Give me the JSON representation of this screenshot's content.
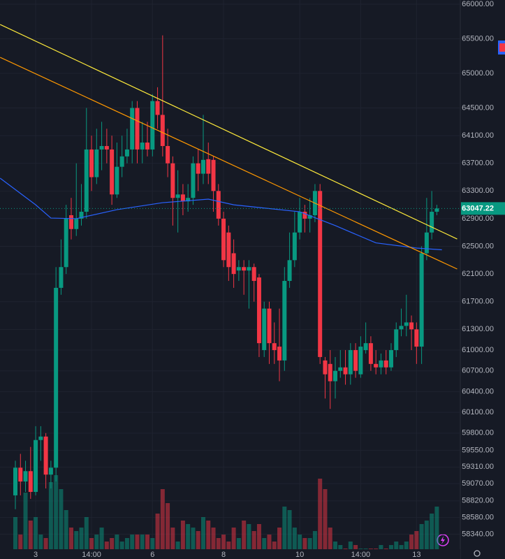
{
  "chart_data": {
    "type": "candlestick",
    "up_color": "#089981",
    "down_color": "#f23645",
    "categories": [
      null,
      null,
      null,
      null,
      "3",
      null,
      null,
      null,
      null,
      null,
      null,
      null,
      null,
      null,
      null,
      "14:00",
      null,
      null,
      null,
      null,
      null,
      null,
      null,
      null,
      null,
      null,
      null,
      "6",
      null,
      null,
      null,
      null,
      null,
      null,
      null,
      null,
      null,
      null,
      null,
      null,
      null,
      "8",
      null,
      null,
      null,
      null,
      null,
      null,
      null,
      null,
      null,
      null,
      null,
      null,
      null,
      null,
      "10",
      null,
      null,
      null,
      null,
      null,
      null,
      null,
      null,
      null,
      null,
      null,
      "14:00",
      null,
      null,
      null,
      null,
      null,
      null,
      null,
      null,
      null,
      null,
      "13",
      null,
      null,
      null,
      null
    ],
    "open": [
      58900,
      59300,
      59100,
      59250,
      58950,
      59700,
      59750,
      59200,
      59300,
      61900,
      62200,
      62950,
      62750,
      62900,
      63000,
      63900,
      63500,
      63900,
      63950,
      63900,
      63250,
      63650,
      63800,
      63900,
      64500,
      63900,
      64000,
      63900,
      64600,
      64400,
      63950,
      63700,
      63200,
      63250,
      63150,
      63200,
      63700,
      63550,
      63760,
      63750,
      63300,
      62900,
      62700,
      62400,
      62150,
      62200,
      62150,
      62200,
      62050,
      61000,
      61600,
      61100,
      61050,
      60850,
      62000,
      62300,
      62700,
      63000,
      62900,
      62950,
      63300,
      60850,
      60800,
      60550,
      60700,
      60750,
      60650,
      61000,
      60650,
      61000,
      61100,
      60800,
      60750,
      60850,
      60750,
      61000,
      61300,
      61350,
      61400,
      61300,
      61050,
      62400,
      62700,
      63000
    ],
    "high": [
      59400,
      59500,
      59400,
      59600,
      59900,
      59900,
      59800,
      59400,
      62200,
      62600,
      63100,
      63200,
      63700,
      63400,
      64500,
      64100,
      64200,
      64300,
      64200,
      64100,
      64000,
      64100,
      64200,
      64600,
      64600,
      64300,
      64300,
      64700,
      64800,
      65550,
      64200,
      63800,
      63600,
      63400,
      63400,
      63800,
      63900,
      64400,
      64000,
      63800,
      63400,
      63000,
      62800,
      62600,
      62300,
      62300,
      62300,
      62250,
      62100,
      61700,
      61700,
      61400,
      61600,
      62200,
      62700,
      63000,
      63200,
      63100,
      63200,
      63400,
      63400,
      60900,
      61000,
      60900,
      61000,
      61000,
      61100,
      61100,
      61200,
      61400,
      61200,
      61000,
      60950,
      61000,
      61100,
      61400,
      61600,
      61800,
      61500,
      61400,
      62500,
      63200,
      63300,
      63100
    ],
    "low": [
      58700,
      58900,
      58950,
      58850,
      58900,
      59400,
      59000,
      59000,
      59100,
      61800,
      62100,
      62600,
      62650,
      62800,
      62900,
      63300,
      63400,
      63600,
      63700,
      63100,
      63200,
      63500,
      63700,
      63700,
      63700,
      63700,
      63800,
      63800,
      64200,
      63800,
      63500,
      62800,
      62700,
      62950,
      63000,
      63100,
      63300,
      63400,
      63400,
      63000,
      62800,
      62200,
      62000,
      61900,
      62000,
      61800,
      61600,
      61700,
      60900,
      60900,
      60800,
      60800,
      60550,
      60700,
      61900,
      62200,
      62600,
      62700,
      62700,
      62850,
      60800,
      60300,
      60150,
      60300,
      60600,
      60500,
      60500,
      60600,
      60600,
      60950,
      60700,
      60650,
      60650,
      60650,
      60700,
      60900,
      61200,
      61200,
      61000,
      60800,
      60800,
      62300,
      62600,
      62950
    ],
    "close": [
      59300,
      59100,
      59250,
      58950,
      59700,
      59750,
      59200,
      59300,
      61900,
      62200,
      62900,
      62750,
      62900,
      63000,
      63900,
      63500,
      63900,
      63950,
      63900,
      63250,
      63650,
      63800,
      63900,
      64500,
      63900,
      64000,
      63900,
      64600,
      64400,
      63950,
      63700,
      63200,
      63250,
      63150,
      63200,
      63700,
      63550,
      63750,
      63550,
      63300,
      62900,
      62300,
      62200,
      62100,
      62200,
      62150,
      62200,
      62000,
      61100,
      61600,
      61100,
      61000,
      60850,
      62000,
      62300,
      62700,
      63000,
      62900,
      62950,
      63300,
      60900,
      60650,
      60550,
      60700,
      60750,
      60650,
      61000,
      60700,
      61050,
      61100,
      60800,
      60750,
      60850,
      60750,
      61000,
      61300,
      61350,
      61400,
      61300,
      61050,
      62400,
      62700,
      63000,
      63047.22
    ],
    "volume": [
      60,
      35,
      95,
      55,
      60,
      35,
      30,
      110,
      120,
      100,
      70,
      45,
      40,
      45,
      60,
      30,
      35,
      45,
      25,
      30,
      35,
      25,
      30,
      35,
      35,
      35,
      35,
      30,
      65,
      100,
      80,
      45,
      25,
      55,
      50,
      45,
      40,
      60,
      55,
      45,
      30,
      35,
      25,
      45,
      30,
      55,
      50,
      40,
      50,
      30,
      35,
      25,
      45,
      75,
      70,
      45,
      35,
      30,
      30,
      40,
      115,
      100,
      45,
      25,
      20,
      15,
      25,
      20,
      15,
      15,
      15,
      15,
      20,
      15,
      20,
      25,
      20,
      25,
      35,
      40,
      50,
      55,
      65,
      75
    ],
    "moving_average": {
      "color": "#2962ff",
      "x": [
        -3,
        4,
        7,
        12,
        20,
        29,
        38,
        43,
        56,
        63,
        71,
        79,
        84
      ],
      "values": [
        63485,
        63100,
        62909,
        62900,
        63030,
        63131,
        63182,
        63100,
        63000,
        62800,
        62550,
        62475,
        62450
      ]
    },
    "trendlines": [
      {
        "color": "#ffeb3b",
        "points": [
          [
            -3,
            65707
          ],
          [
            87,
            62606
          ]
        ]
      },
      {
        "color": "#ff9800",
        "points": [
          [
            -3,
            65232
          ],
          [
            87,
            62172
          ]
        ]
      }
    ],
    "last_price": 63047.22,
    "ylim": [
      57980,
      66061
    ],
    "yticks": [
      {
        "value": 66000,
        "label": "66000.00"
      },
      {
        "value": 65500,
        "label": "65500.00"
      },
      {
        "value": 65000,
        "label": "65000.00"
      },
      {
        "value": 64500,
        "label": "64500.00"
      },
      {
        "value": 64100,
        "label": "64100.00"
      },
      {
        "value": 63700,
        "label": "63700.00"
      },
      {
        "value": 63300,
        "label": "63300.00"
      },
      {
        "value": 62900,
        "label": "62900.00"
      },
      {
        "value": 62500,
        "label": "62500.00"
      },
      {
        "value": 62100,
        "label": "62100.00"
      },
      {
        "value": 61700,
        "label": "61700.00"
      },
      {
        "value": 61300,
        "label": "61300.00"
      },
      {
        "value": 61000,
        "label": "61000.00"
      },
      {
        "value": 60700,
        "label": "60700.00"
      },
      {
        "value": 60400,
        "label": "60400.00"
      },
      {
        "value": 60100,
        "label": "60100.00"
      },
      {
        "value": 59800,
        "label": "59800.00"
      },
      {
        "value": 59550,
        "label": "59550.00"
      },
      {
        "value": 59310,
        "label": "59310.00"
      },
      {
        "value": 59070,
        "label": "59070.00"
      },
      {
        "value": 58820,
        "label": "58820.00"
      },
      {
        "value": 58580,
        "label": "58580.00"
      },
      {
        "value": 58340,
        "label": "58340.00"
      }
    ]
  }
}
